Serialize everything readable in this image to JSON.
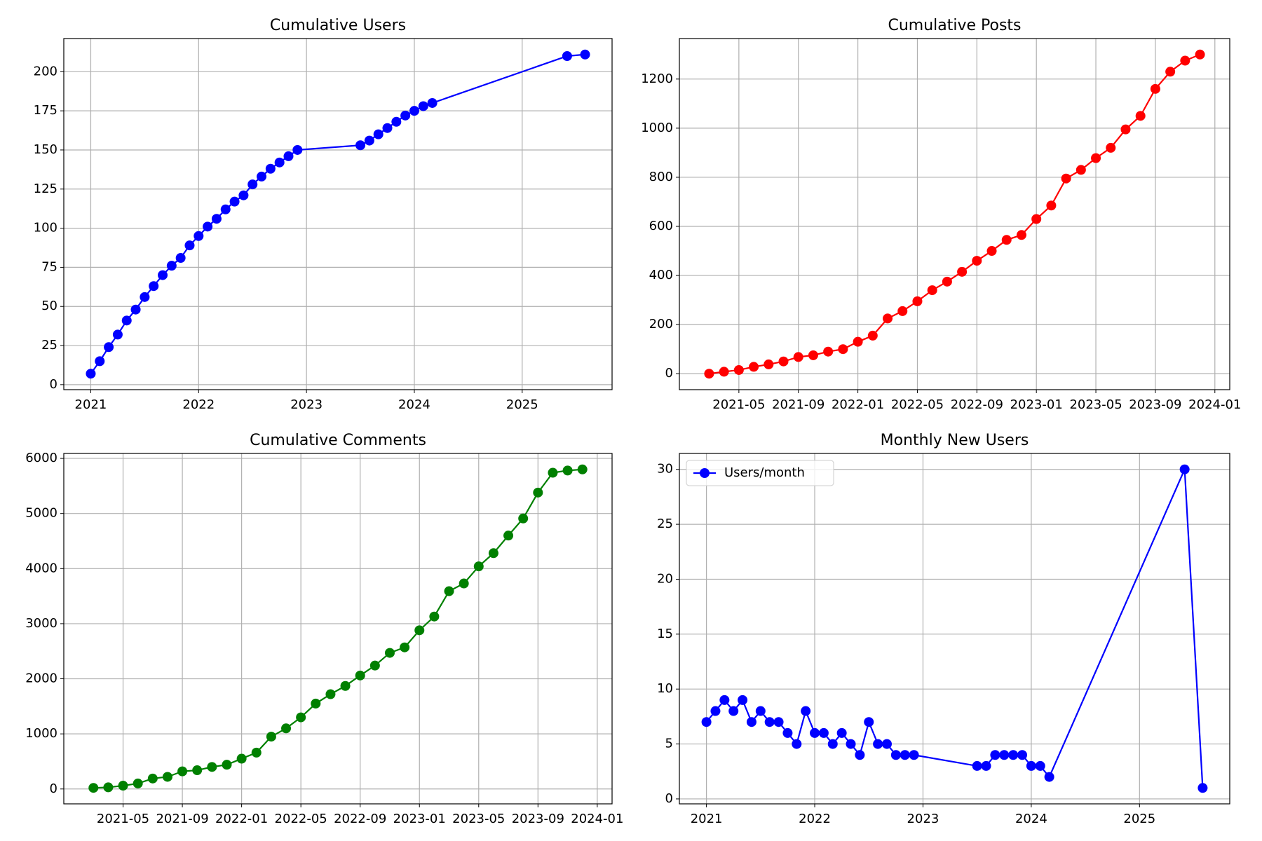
{
  "chart_data": [
    {
      "type": "line",
      "title": "Cumulative Users",
      "color": "#0000ff",
      "x": [
        "2021-01",
        "2021-02",
        "2021-03",
        "2021-04",
        "2021-05",
        "2021-06",
        "2021-07",
        "2021-08",
        "2021-09",
        "2021-10",
        "2021-11",
        "2021-12",
        "2022-01",
        "2022-02",
        "2022-03",
        "2022-04",
        "2022-05",
        "2022-06",
        "2022-07",
        "2022-08",
        "2022-09",
        "2022-10",
        "2022-11",
        "2022-12",
        "2023-07",
        "2023-08",
        "2023-09",
        "2023-10",
        "2023-11",
        "2023-12",
        "2024-01",
        "2024-02",
        "2024-03",
        "2025-06",
        "2025-08"
      ],
      "values": [
        7,
        15,
        24,
        32,
        41,
        48,
        56,
        63,
        70,
        76,
        81,
        89,
        95,
        101,
        106,
        112,
        117,
        121,
        128,
        133,
        138,
        142,
        146,
        150,
        153,
        156,
        160,
        164,
        168,
        172,
        175,
        178,
        180,
        210,
        211
      ],
      "xlim": [
        "2020-10",
        "2025-11"
      ],
      "xticks": [
        "2021",
        "2022",
        "2023",
        "2024",
        "2025"
      ],
      "ylim": [
        -3.2,
        221.2
      ],
      "yticks": [
        0,
        25,
        50,
        75,
        100,
        125,
        150,
        175,
        200
      ],
      "grid": true
    },
    {
      "type": "line",
      "title": "Cumulative Posts",
      "color": "#ff0000",
      "x": [
        "2021-03",
        "2021-04",
        "2021-05",
        "2021-06",
        "2021-07",
        "2021-08",
        "2021-09",
        "2021-10",
        "2021-11",
        "2021-12",
        "2022-01",
        "2022-02",
        "2022-03",
        "2022-04",
        "2022-05",
        "2022-06",
        "2022-07",
        "2022-08",
        "2022-09",
        "2022-10",
        "2022-11",
        "2022-12",
        "2023-01",
        "2023-02",
        "2023-03",
        "2023-04",
        "2023-05",
        "2023-06",
        "2023-07",
        "2023-08",
        "2023-09",
        "2023-10",
        "2023-11",
        "2023-12"
      ],
      "values": [
        0,
        8,
        15,
        28,
        38,
        50,
        68,
        75,
        90,
        100,
        130,
        155,
        225,
        255,
        295,
        340,
        375,
        415,
        460,
        500,
        545,
        565,
        630,
        685,
        795,
        830,
        878,
        920,
        995,
        1050,
        1160,
        1230,
        1275,
        1300
      ],
      "xlim": [
        "2021-01",
        "2024-02"
      ],
      "xticks": [
        "2021-05",
        "2021-09",
        "2022-01",
        "2022-05",
        "2022-09",
        "2023-01",
        "2023-05",
        "2023-09",
        "2024-01"
      ],
      "ylim": [
        -65,
        1365
      ],
      "yticks": [
        0,
        200,
        400,
        600,
        800,
        1000,
        1200
      ],
      "grid": true
    },
    {
      "type": "line",
      "title": "Cumulative Comments",
      "color": "#008000",
      "x": [
        "2021-03",
        "2021-04",
        "2021-05",
        "2021-06",
        "2021-07",
        "2021-08",
        "2021-09",
        "2021-10",
        "2021-11",
        "2021-12",
        "2022-01",
        "2022-02",
        "2022-03",
        "2022-04",
        "2022-05",
        "2022-06",
        "2022-07",
        "2022-08",
        "2022-09",
        "2022-10",
        "2022-11",
        "2022-12",
        "2023-01",
        "2023-02",
        "2023-03",
        "2023-04",
        "2023-05",
        "2023-06",
        "2023-07",
        "2023-08",
        "2023-09",
        "2023-10",
        "2023-11",
        "2023-12"
      ],
      "values": [
        20,
        30,
        60,
        100,
        190,
        220,
        320,
        340,
        400,
        440,
        550,
        660,
        950,
        1100,
        1300,
        1550,
        1720,
        1870,
        2060,
        2240,
        2470,
        2570,
        2880,
        3130,
        3590,
        3730,
        4040,
        4280,
        4600,
        4910,
        5380,
        5740,
        5780,
        5800
      ],
      "xlim": [
        "2021-01",
        "2024-02"
      ],
      "xticks": [
        "2021-05",
        "2021-09",
        "2022-01",
        "2022-05",
        "2022-09",
        "2023-01",
        "2023-05",
        "2023-09",
        "2024-01"
      ],
      "ylim": [
        -270,
        6090
      ],
      "yticks": [
        0,
        1000,
        2000,
        3000,
        4000,
        5000,
        6000
      ],
      "grid": true
    },
    {
      "type": "line",
      "title": "Monthly New Users",
      "x": [
        "2021-01",
        "2021-02",
        "2021-03",
        "2021-04",
        "2021-05",
        "2021-06",
        "2021-07",
        "2021-08",
        "2021-09",
        "2021-10",
        "2021-11",
        "2021-12",
        "2022-01",
        "2022-02",
        "2022-03",
        "2022-04",
        "2022-05",
        "2022-06",
        "2022-07",
        "2022-08",
        "2022-09",
        "2022-10",
        "2022-11",
        "2022-12",
        "2023-07",
        "2023-08",
        "2023-09",
        "2023-10",
        "2023-11",
        "2023-12",
        "2024-01",
        "2024-02",
        "2024-03",
        "2025-06",
        "2025-08"
      ],
      "series": [
        {
          "name": "Users/month",
          "color": "#0000ff",
          "values": [
            7,
            8,
            9,
            8,
            9,
            7,
            8,
            7,
            7,
            6,
            5,
            8,
            6,
            6,
            5,
            6,
            5,
            4,
            7,
            5,
            5,
            4,
            4,
            4,
            3,
            3,
            4,
            4,
            4,
            4,
            3,
            3,
            2,
            30,
            1
          ]
        }
      ],
      "xlim": [
        "2020-10",
        "2025-11"
      ],
      "xticks": [
        "2021",
        "2022",
        "2023",
        "2024",
        "2025"
      ],
      "ylim": [
        -0.45,
        31.45
      ],
      "yticks": [
        0,
        5,
        10,
        15,
        20,
        25,
        30
      ],
      "grid": true,
      "legend": "upper left"
    }
  ]
}
